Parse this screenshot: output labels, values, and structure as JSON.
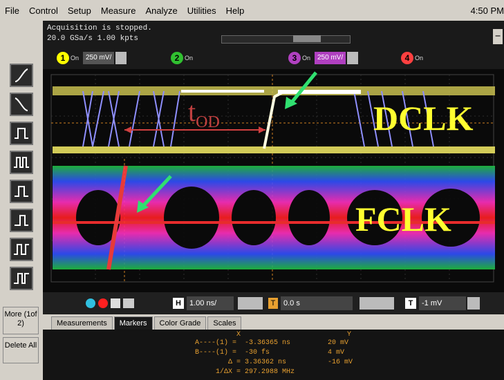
{
  "menu": [
    "File",
    "Control",
    "Setup",
    "Measure",
    "Analyze",
    "Utilities",
    "Help"
  ],
  "clock": "4:50 PM",
  "status": {
    "line1": "Acquisition is stopped.",
    "line2": "20.0 GSa/s   1.00 kpts"
  },
  "channels": [
    {
      "num": "1",
      "on": "On",
      "scale": "250 mV/",
      "color": "#ffff00"
    },
    {
      "num": "2",
      "on": "On",
      "scale": "",
      "color": "#30c030"
    },
    {
      "num": "3",
      "on": "On",
      "scale": "250 mV/",
      "color": "#b040c0"
    },
    {
      "num": "4",
      "on": "On",
      "scale": "",
      "color": "#ff4040"
    }
  ],
  "sidebar": {
    "more": "More (1of 2)",
    "delete_all": "Delete All"
  },
  "annotations": {
    "tod_main": "t",
    "tod_sub": "OD",
    "dclk": "DCLK",
    "fclk": "FCLK"
  },
  "controls": {
    "timebase_label": "H",
    "timebase": "1.00 ns/",
    "trigger_label": "T",
    "delay": "0.0 s",
    "trig_level_label": "T",
    "trig_level": "-1 mV"
  },
  "tabs": [
    "Measurements",
    "Markers",
    "Color Grade",
    "Scales"
  ],
  "markers": {
    "header_x": "X",
    "header_y": "Y",
    "rows": [
      {
        "label": "A----(1) =",
        "x": "-3.36365 ns",
        "y": "20 mV"
      },
      {
        "label": "B----(1) =",
        "x": "-30 fs",
        "y": "4 mV"
      },
      {
        "label": "Δ =",
        "x": "3.36362 ns",
        "y": "-16 mV"
      },
      {
        "label": "1/ΔX =",
        "x": "297.2988 MHz",
        "y": ""
      }
    ]
  }
}
